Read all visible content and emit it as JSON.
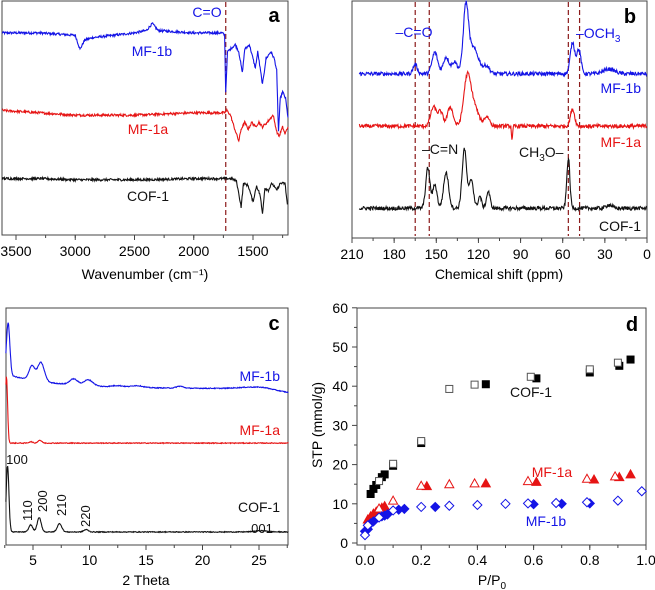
{
  "colors": {
    "mf1b": "#1414e6",
    "mf1a": "#e61414",
    "cof1": "#111111",
    "guide": "#8b1a1a"
  },
  "chart_data": [
    {
      "panel": "a",
      "type": "line",
      "xlabel": "Wavenumber (cm⁻¹)",
      "ylabel": "",
      "xlim": [
        3620,
        1200
      ],
      "xticks": [
        3500,
        3000,
        2500,
        2000,
        1500
      ],
      "annotations": {
        "guide_label": "C=O",
        "guide_x": 1730
      },
      "series": [
        {
          "name": "MF-1b",
          "color": "#1414e6",
          "points": [
            [
              3620,
              86
            ],
            [
              3300,
              86
            ],
            [
              3000,
              85
            ],
            [
              2960,
              79
            ],
            [
              2920,
              83
            ],
            [
              2850,
              84
            ],
            [
              2500,
              86
            ],
            [
              2400,
              87
            ],
            [
              2350,
              90
            ],
            [
              2300,
              87
            ],
            [
              2000,
              86
            ],
            [
              1760,
              86
            ],
            [
              1740,
              85
            ],
            [
              1730,
              61
            ],
            [
              1715,
              78
            ],
            [
              1650,
              81
            ],
            [
              1620,
              78
            ],
            [
              1590,
              69
            ],
            [
              1570,
              79
            ],
            [
              1530,
              81
            ],
            [
              1500,
              75
            ],
            [
              1480,
              71
            ],
            [
              1460,
              78
            ],
            [
              1420,
              64
            ],
            [
              1390,
              75
            ],
            [
              1350,
              78
            ],
            [
              1320,
              75
            ],
            [
              1300,
              70
            ],
            [
              1285,
              44
            ],
            [
              1270,
              58
            ],
            [
              1250,
              61
            ],
            [
              1225,
              58
            ],
            [
              1205,
              50
            ]
          ]
        },
        {
          "name": "MF-1a",
          "color": "#e61414",
          "points": [
            [
              3620,
              53
            ],
            [
              3300,
              52
            ],
            [
              3000,
              51
            ],
            [
              2500,
              51
            ],
            [
              2000,
              52
            ],
            [
              1740,
              52
            ],
            [
              1720,
              53
            ],
            [
              1690,
              51
            ],
            [
              1660,
              46
            ],
            [
              1620,
              40
            ],
            [
              1600,
              45
            ],
            [
              1570,
              48
            ],
            [
              1540,
              45
            ],
            [
              1510,
              48
            ],
            [
              1480,
              46
            ],
            [
              1450,
              48
            ],
            [
              1420,
              46
            ],
            [
              1380,
              48
            ],
            [
              1330,
              51
            ],
            [
              1300,
              44
            ],
            [
              1280,
              42
            ],
            [
              1250,
              46
            ],
            [
              1230,
              43
            ],
            [
              1205,
              46
            ]
          ]
        },
        {
          "name": "COF-1",
          "color": "#111111",
          "points": [
            [
              3620,
              24
            ],
            [
              3300,
              24
            ],
            [
              3000,
              23.5
            ],
            [
              2400,
              23.5
            ],
            [
              2000,
              24
            ],
            [
              1680,
              24
            ],
            [
              1640,
              23
            ],
            [
              1600,
              12
            ],
            [
              1580,
              22
            ],
            [
              1540,
              21
            ],
            [
              1500,
              14
            ],
            [
              1470,
              21
            ],
            [
              1440,
              17
            ],
            [
              1420,
              9
            ],
            [
              1400,
              20
            ],
            [
              1370,
              19
            ],
            [
              1340,
              22
            ],
            [
              1300,
              19
            ],
            [
              1270,
              22
            ],
            [
              1230,
              22
            ],
            [
              1210,
              13
            ]
          ]
        }
      ]
    },
    {
      "panel": "b",
      "type": "line",
      "xlabel": "Chemical shift (ppm)",
      "xlim": [
        210,
        0
      ],
      "xticks": [
        210,
        180,
        150,
        120,
        90,
        60,
        30,
        0
      ],
      "guides": [
        165,
        155,
        56,
        48
      ],
      "annotations": {
        "co": "–C=O",
        "och3_main": "–OCH",
        "och3_sub": "3",
        "cn": "–C=N",
        "ch3o_a": "CH",
        "ch3o_sub": "3",
        "ch3o_b": "O–"
      },
      "series": [
        {
          "name": "MF-1b",
          "color": "#1414e6",
          "baseline": 69,
          "peaks": [
            [
              165,
              4,
              1.5
            ],
            [
              151,
              9,
              2
            ],
            [
              143,
              7,
              2
            ],
            [
              137,
              5,
              2
            ],
            [
              129,
              25,
              1.8
            ],
            [
              124,
              11,
              4
            ],
            [
              114,
              3,
              2
            ],
            [
              53,
              13,
              1.6
            ],
            [
              48.5,
              10,
              1.5
            ],
            [
              27,
              2,
              4
            ]
          ]
        },
        {
          "name": "MF-1a",
          "color": "#e61414",
          "baseline": 47,
          "peaks": [
            [
              152,
              8,
              2
            ],
            [
              147,
              6,
              1.8
            ],
            [
              140,
              8,
              2
            ],
            [
              128,
              20,
              2.5
            ],
            [
              123,
              8,
              3
            ],
            [
              114,
              4,
              2
            ],
            [
              53,
              7,
              1.5
            ],
            [
              96,
              -6,
              0.4
            ]
          ]
        },
        {
          "name": "COF-1",
          "color": "#111111",
          "baseline": 12.5,
          "peaks": [
            [
              156,
              17,
              1.5
            ],
            [
              151,
              10,
              1.5
            ],
            [
              143,
              15,
              1.8
            ],
            [
              130,
              25,
              1.6
            ],
            [
              125,
              12,
              1.5
            ],
            [
              119,
              5,
              1.2
            ],
            [
              113,
              7,
              1.3
            ],
            [
              56,
              21,
              1.1
            ],
            [
              27,
              1.5,
              2
            ]
          ]
        }
      ]
    },
    {
      "panel": "c",
      "type": "line",
      "xlabel": "2 Theta",
      "xlim": [
        2.6,
        27.6
      ],
      "xticks": [
        5,
        10,
        15,
        20,
        25
      ],
      "reflections": [
        "100",
        "110",
        "200",
        "210",
        "220",
        "001"
      ],
      "series": [
        {
          "name": "MF-1b",
          "color": "#1414e6",
          "baseline": 66,
          "peaks": [
            [
              2.8,
              22,
              0.15
            ],
            [
              4.9,
              6,
              0.25
            ],
            [
              5.7,
              8,
              0.3
            ],
            [
              8.6,
              2.5,
              0.35
            ],
            [
              9.9,
              2.5,
              0.4
            ],
            [
              12.5,
              0.6,
              0.5
            ],
            [
              14.2,
              0.8,
              0.5
            ],
            [
              18,
              0.8,
              0.3
            ],
            [
              24.5,
              0.6,
              1.2
            ]
          ]
        },
        {
          "name": "MF-1a",
          "color": "#e61414",
          "baseline": 43,
          "peaks": [
            [
              2.65,
              28,
              0.1
            ],
            [
              4.8,
              0.6,
              0.15
            ],
            [
              5.6,
              1.2,
              0.17
            ]
          ]
        },
        {
          "name": "COF-1",
          "color": "#111111",
          "baseline": 5.5,
          "peaks": [
            [
              2.75,
              28,
              0.12
            ],
            [
              4.8,
              3,
              0.17
            ],
            [
              5.55,
              6,
              0.18
            ],
            [
              7.35,
              3.5,
              0.2
            ],
            [
              9.7,
              1,
              0.2
            ],
            [
              25.2,
              0.5,
              0.6
            ]
          ]
        }
      ]
    },
    {
      "panel": "d",
      "type": "scatter",
      "xlabel_main": "P/P",
      "xlabel_sub": "0",
      "ylabel": "STP (mmol/g)",
      "xlim": [
        0,
        1.0
      ],
      "ylim": [
        0,
        60
      ],
      "xticks": [
        "0.0",
        "0.2",
        "0.4",
        "0.6",
        "0.8",
        "1.0"
      ],
      "yticks": [
        "0",
        "10",
        "20",
        "30",
        "40",
        "50",
        "60"
      ],
      "series": [
        {
          "name": "COF-1",
          "branch": "adsorption",
          "marker": "square",
          "filled": true,
          "color": "#000000",
          "points": [
            [
              0.02,
              12.5
            ],
            [
              0.03,
              13.8
            ],
            [
              0.04,
              14.8
            ],
            [
              0.06,
              16.8
            ],
            [
              0.07,
              17.5
            ],
            [
              0.1,
              19.7
            ],
            [
              0.2,
              25.5
            ],
            [
              0.43,
              40.5
            ],
            [
              0.61,
              42
            ],
            [
              0.8,
              43.5
            ],
            [
              0.905,
              45.2
            ],
            [
              0.945,
              46.8
            ]
          ]
        },
        {
          "name": "COF-1",
          "branch": "desorption",
          "marker": "square",
          "filled": false,
          "color": "#555555",
          "points": [
            [
              0.05,
              15.8
            ],
            [
              0.1,
              20.2
            ],
            [
              0.2,
              26
            ],
            [
              0.3,
              39.3
            ],
            [
              0.39,
              40.4
            ],
            [
              0.59,
              42.4
            ],
            [
              0.8,
              44.3
            ],
            [
              0.9,
              46
            ]
          ]
        },
        {
          "name": "MF-1a",
          "branch": "adsorption",
          "marker": "triangle",
          "filled": true,
          "color": "#e61414",
          "points": [
            [
              0.01,
              6
            ],
            [
              0.02,
              6.8
            ],
            [
              0.03,
              7.5
            ],
            [
              0.04,
              8
            ],
            [
              0.06,
              9
            ],
            [
              0.07,
              9.4
            ],
            [
              0.22,
              14.5
            ],
            [
              0.43,
              15.2
            ],
            [
              0.61,
              15.6
            ],
            [
              0.815,
              16.2
            ],
            [
              0.905,
              16.8
            ],
            [
              0.945,
              17.5
            ]
          ]
        },
        {
          "name": "MF-1a",
          "branch": "desorption",
          "marker": "triangle",
          "filled": false,
          "color": "#e61414",
          "points": [
            [
              0.05,
              8.8
            ],
            [
              0.1,
              10.8
            ],
            [
              0.2,
              14.6
            ],
            [
              0.3,
              15
            ],
            [
              0.39,
              15.2
            ],
            [
              0.58,
              15.8
            ],
            [
              0.79,
              16.4
            ],
            [
              0.89,
              17
            ]
          ]
        },
        {
          "name": "MF-1b",
          "branch": "adsorption",
          "marker": "diamond",
          "filled": true,
          "color": "#1414e6",
          "points": [
            [
              0.0,
              3
            ],
            [
              0.01,
              3.5
            ],
            [
              0.02,
              5
            ],
            [
              0.03,
              5.5
            ],
            [
              0.06,
              6.8
            ],
            [
              0.07,
              7
            ],
            [
              0.08,
              7.3
            ],
            [
              0.12,
              8.5
            ],
            [
              0.14,
              8.7
            ],
            [
              0.25,
              9.2
            ],
            [
              0.6,
              9.9
            ],
            [
              0.7,
              10
            ],
            [
              0.8,
              10.1
            ]
          ]
        },
        {
          "name": "MF-1b",
          "branch": "desorption",
          "marker": "diamond",
          "filled": false,
          "color": "#1414e6",
          "points": [
            [
              0.0,
              2
            ],
            [
              0.01,
              4.5
            ],
            [
              0.05,
              6.5
            ],
            [
              0.1,
              8.3
            ],
            [
              0.2,
              9.2
            ],
            [
              0.3,
              9.5
            ],
            [
              0.4,
              9.7
            ],
            [
              0.5,
              10
            ],
            [
              0.58,
              10.1
            ],
            [
              0.68,
              10.2
            ],
            [
              0.79,
              10.4
            ],
            [
              0.9,
              10.8
            ],
            [
              0.985,
              13.2
            ]
          ]
        }
      ]
    }
  ],
  "panel_letters": [
    "a",
    "b",
    "c",
    "d"
  ],
  "labels": {
    "mf1b": "MF-1b",
    "mf1a": "MF-1a",
    "cof1": "COF-1"
  }
}
